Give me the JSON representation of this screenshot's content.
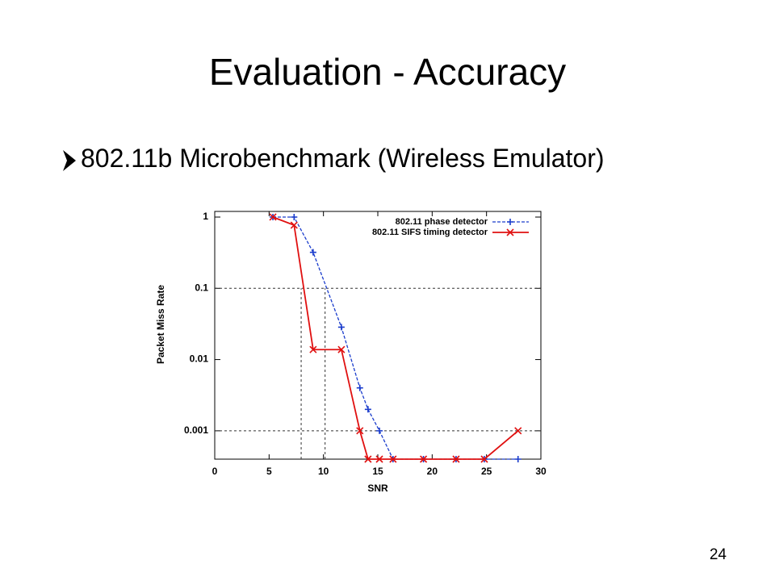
{
  "slide": {
    "title": "Evaluation - Accuracy",
    "bullet": "802.11b Microbenchmark (Wireless Emulator)",
    "page_number": "24"
  },
  "chart_data": {
    "type": "line",
    "xlabel": "SNR",
    "ylabel": "Packet Miss Rate",
    "x": [
      5.35,
      7.3,
      9.05,
      11.65,
      13.35,
      14.1,
      15.15,
      16.4,
      19.2,
      22.2,
      24.8,
      27.9
    ],
    "series": [
      {
        "name": "802.11 phase detector",
        "color": "#1a3ccc",
        "marker": "plus",
        "dash": true,
        "values": [
          1,
          1,
          0.32,
          0.0285,
          0.004,
          0.002,
          0.001,
          0.0004,
          0.0004,
          0.0004,
          0.0004,
          0.0004
        ]
      },
      {
        "name": "802.11 SIFS timing detector",
        "color": "#e01010",
        "marker": "cross",
        "dash": false,
        "values": [
          1,
          0.77,
          0.0138,
          0.0138,
          0.001,
          0.0004,
          0.0004,
          0.0004,
          0.0004,
          0.0004,
          0.0004,
          0.001
        ]
      }
    ],
    "xlim": [
      0,
      30
    ],
    "xticks": [
      0,
      5,
      10,
      15,
      20,
      25,
      30
    ],
    "ylim": [
      0.0004,
      1.2
    ],
    "yticks": [
      0.001,
      0.01,
      0.1,
      1
    ],
    "log_y": true,
    "reference_lines": {
      "y": [
        0.1,
        0.001
      ],
      "x": [
        7.95,
        10.15
      ]
    },
    "legend": "upper right"
  }
}
